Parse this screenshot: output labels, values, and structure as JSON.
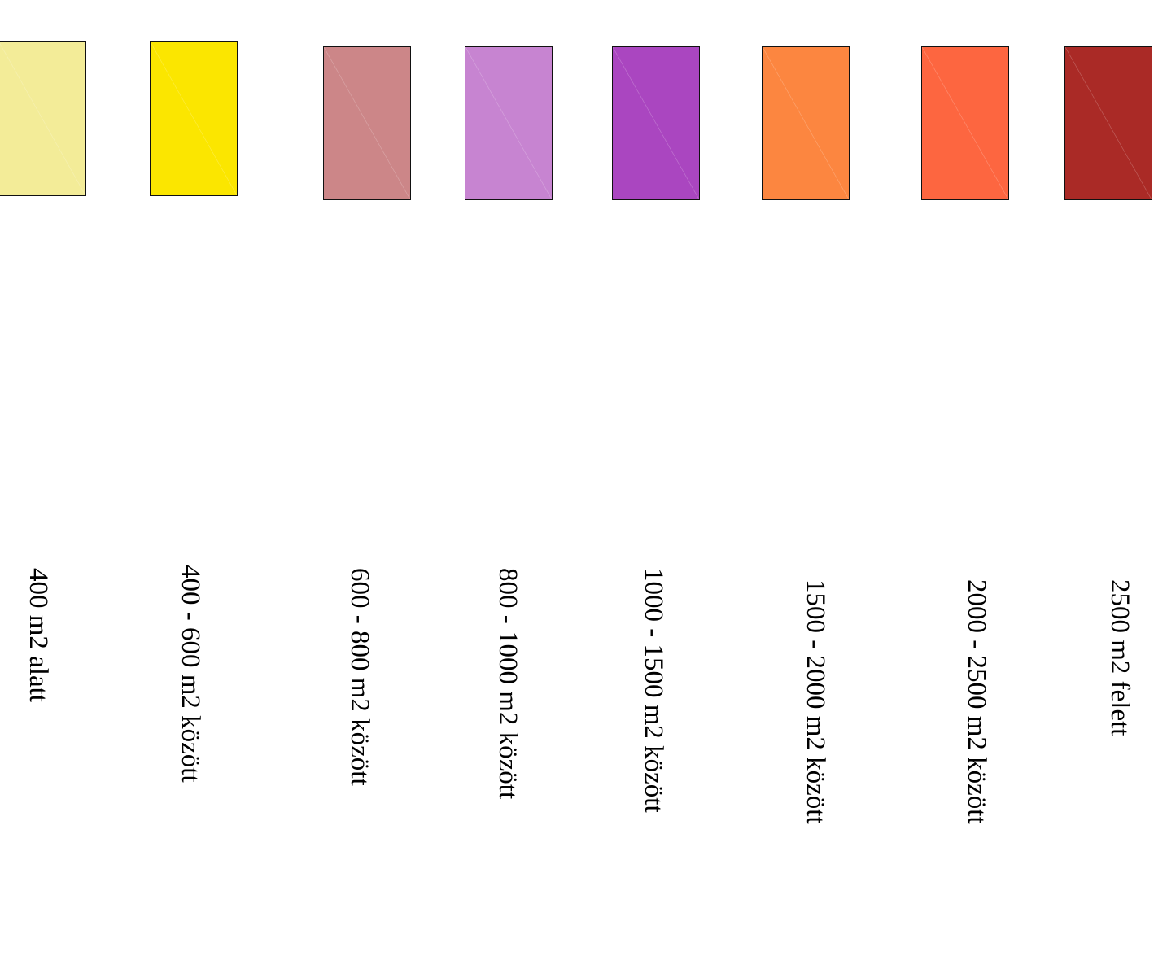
{
  "legend": {
    "items": [
      {
        "label": "400 m2 alatt",
        "color": "#f3ec98"
      },
      {
        "label": "400 - 600 m2 között",
        "color": "#fbe600"
      },
      {
        "label": "600 - 800 m2 között",
        "color": "#cc8688"
      },
      {
        "label": "800 - 1000 m2 között",
        "color": "#c784d1"
      },
      {
        "label": "1000 - 1500 m2 között",
        "color": "#aa46c0"
      },
      {
        "label": "1500 - 2000 m2 között",
        "color": "#fc8640"
      },
      {
        "label": "2000 - 2500 m2 között",
        "color": "#fd6640"
      },
      {
        "label": "2500 m2 felett",
        "color": "#aa2a26"
      }
    ]
  }
}
